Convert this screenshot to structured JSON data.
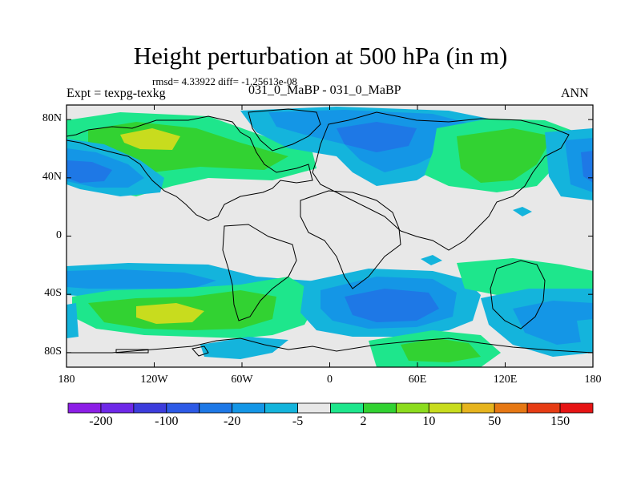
{
  "title": "Height perturbation at 500 hPa (in m)",
  "stats_text": "rmsd= 4.33922 diff= -1.25613e-08",
  "experiment_label": "Expt = texpg-texkg",
  "case_label": "031_0_MaBP - 031_0_MaBP",
  "season_label": "ANN",
  "lat_ticks": [
    {
      "lat": 80,
      "label": "80N"
    },
    {
      "lat": 40,
      "label": "40N"
    },
    {
      "lat": 0,
      "label": "0"
    },
    {
      "lat": -40,
      "label": "40S"
    },
    {
      "lat": -80,
      "label": "80S"
    }
  ],
  "lon_ticks": [
    {
      "lon": -180,
      "label": "180"
    },
    {
      "lon": -120,
      "label": "120W"
    },
    {
      "lon": -60,
      "label": "60W"
    },
    {
      "lon": 0,
      "label": "0"
    },
    {
      "lon": 60,
      "label": "60E"
    },
    {
      "lon": 120,
      "label": "120E"
    },
    {
      "lon": 180,
      "label": "180"
    }
  ],
  "colorbar": {
    "colors": [
      "#8c1ee6",
      "#6e28e8",
      "#3c3cdc",
      "#2d5ae6",
      "#1e78e6",
      "#1496e6",
      "#14b4dc",
      "#e8e8e8",
      "#1ee68c",
      "#32d232",
      "#8cdc1e",
      "#c8dc1e",
      "#e6b41e",
      "#e67814",
      "#e63c14",
      "#e61414"
    ],
    "labels": [
      "-200",
      "-100",
      "-20",
      "-5",
      "2",
      "10",
      "50",
      "150"
    ]
  },
  "map_colors": {
    "background": "#e8e8e8",
    "neutral": "#e8e8e8",
    "light_green": "#1ee68c",
    "green": "#32d232",
    "yellow_green": "#c8dc1e",
    "cyan": "#14b4dc",
    "light_blue": "#1496e6",
    "blue": "#1e78e6"
  }
}
